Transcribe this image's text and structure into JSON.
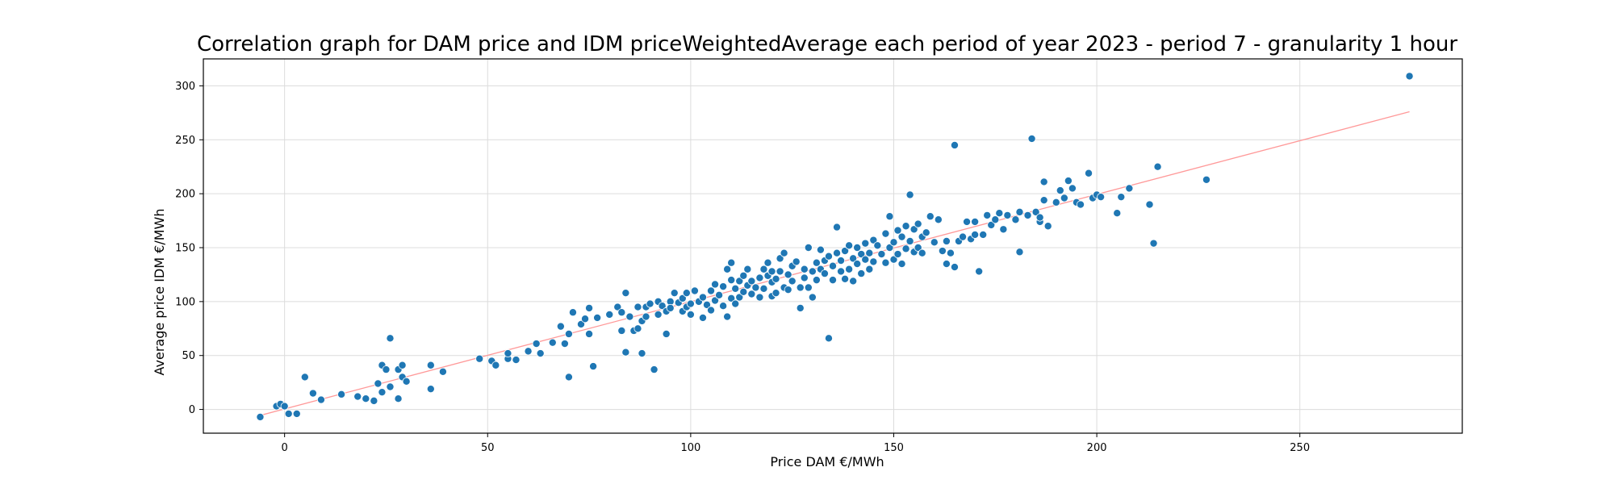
{
  "chart_data": {
    "type": "scatter",
    "title": "Correlation graph for DAM price and IDM priceWeightedAverage each period of year 2023 - period 7 - granularity 1 hour",
    "xlabel": "Price DAM €/MWh",
    "ylabel": "Average price IDM €/MWh",
    "xlim": [
      -20,
      290
    ],
    "ylim": [
      -22,
      325
    ],
    "xticks": [
      0,
      50,
      100,
      150,
      200,
      250
    ],
    "yticks": [
      0,
      50,
      100,
      150,
      200,
      250,
      300
    ],
    "grid": true,
    "colors": {
      "points": "#1f77b4",
      "regression": "#ff9999"
    },
    "regression_line": {
      "x": [
        -6,
        277
      ],
      "y": [
        -5.5,
        276
      ]
    },
    "series": [
      {
        "points": [
          [
            -6,
            -7
          ],
          [
            -2,
            3
          ],
          [
            -1,
            5
          ],
          [
            0,
            3
          ],
          [
            1,
            -4
          ],
          [
            3,
            -4
          ],
          [
            5,
            30
          ],
          [
            7,
            15
          ],
          [
            9,
            9
          ],
          [
            14,
            14
          ],
          [
            18,
            12
          ],
          [
            20,
            10
          ],
          [
            22,
            8
          ],
          [
            23,
            24
          ],
          [
            24,
            41
          ],
          [
            24,
            16
          ],
          [
            25,
            37
          ],
          [
            26,
            21
          ],
          [
            26,
            66
          ],
          [
            28,
            37
          ],
          [
            28,
            10
          ],
          [
            29,
            41
          ],
          [
            29,
            30
          ],
          [
            30,
            26
          ],
          [
            36,
            41
          ],
          [
            36,
            19
          ],
          [
            39,
            35
          ],
          [
            48,
            47
          ],
          [
            51,
            45
          ],
          [
            52,
            41
          ],
          [
            55,
            47
          ],
          [
            55,
            52
          ],
          [
            57,
            46
          ],
          [
            60,
            54
          ],
          [
            62,
            61
          ],
          [
            63,
            52
          ],
          [
            66,
            62
          ],
          [
            68,
            77
          ],
          [
            69,
            61
          ],
          [
            70,
            30
          ],
          [
            70,
            70
          ],
          [
            71,
            90
          ],
          [
            73,
            79
          ],
          [
            74,
            84
          ],
          [
            75,
            94
          ],
          [
            75,
            70
          ],
          [
            76,
            40
          ],
          [
            77,
            85
          ],
          [
            80,
            88
          ],
          [
            82,
            95
          ],
          [
            83,
            73
          ],
          [
            83,
            90
          ],
          [
            84,
            108
          ],
          [
            84,
            53
          ],
          [
            85,
            86
          ],
          [
            86,
            73
          ],
          [
            87,
            95
          ],
          [
            87,
            75
          ],
          [
            88,
            52
          ],
          [
            88,
            82
          ],
          [
            89,
            95
          ],
          [
            89,
            86
          ],
          [
            90,
            98
          ],
          [
            91,
            37
          ],
          [
            92,
            88
          ],
          [
            92,
            100
          ],
          [
            93,
            96
          ],
          [
            94,
            91
          ],
          [
            94,
            70
          ],
          [
            95,
            100
          ],
          [
            95,
            94
          ],
          [
            96,
            108
          ],
          [
            97,
            99
          ],
          [
            98,
            103
          ],
          [
            98,
            91
          ],
          [
            99,
            95
          ],
          [
            99,
            108
          ],
          [
            100,
            98
          ],
          [
            100,
            88
          ],
          [
            101,
            110
          ],
          [
            102,
            100
          ],
          [
            103,
            104
          ],
          [
            103,
            85
          ],
          [
            104,
            97
          ],
          [
            105,
            110
          ],
          [
            105,
            92
          ],
          [
            106,
            101
          ],
          [
            106,
            116
          ],
          [
            107,
            106
          ],
          [
            108,
            114
          ],
          [
            108,
            96
          ],
          [
            109,
            130
          ],
          [
            109,
            86
          ],
          [
            110,
            120
          ],
          [
            110,
            103
          ],
          [
            110,
            136
          ],
          [
            111,
            112
          ],
          [
            111,
            98
          ],
          [
            112,
            119
          ],
          [
            112,
            104
          ],
          [
            113,
            124
          ],
          [
            113,
            109
          ],
          [
            114,
            115
          ],
          [
            114,
            130
          ],
          [
            115,
            107
          ],
          [
            115,
            119
          ],
          [
            116,
            113
          ],
          [
            117,
            122
          ],
          [
            117,
            104
          ],
          [
            118,
            130
          ],
          [
            118,
            112
          ],
          [
            119,
            124
          ],
          [
            119,
            136
          ],
          [
            120,
            118
          ],
          [
            120,
            105
          ],
          [
            120,
            128
          ],
          [
            121,
            121
          ],
          [
            121,
            108
          ],
          [
            122,
            140
          ],
          [
            122,
            128
          ],
          [
            123,
            113
          ],
          [
            123,
            145
          ],
          [
            124,
            125
          ],
          [
            124,
            111
          ],
          [
            125,
            133
          ],
          [
            125,
            119
          ],
          [
            126,
            137
          ],
          [
            127,
            113
          ],
          [
            127,
            94
          ],
          [
            128,
            130
          ],
          [
            128,
            122
          ],
          [
            129,
            150
          ],
          [
            129,
            113
          ],
          [
            130,
            128
          ],
          [
            130,
            104
          ],
          [
            131,
            136
          ],
          [
            131,
            120
          ],
          [
            132,
            130
          ],
          [
            132,
            148
          ],
          [
            133,
            126
          ],
          [
            133,
            138
          ],
          [
            134,
            142
          ],
          [
            134,
            66
          ],
          [
            135,
            133
          ],
          [
            135,
            120
          ],
          [
            136,
            145
          ],
          [
            136,
            169
          ],
          [
            137,
            128
          ],
          [
            137,
            138
          ],
          [
            138,
            147
          ],
          [
            138,
            121
          ],
          [
            139,
            152
          ],
          [
            139,
            130
          ],
          [
            140,
            140
          ],
          [
            140,
            119
          ],
          [
            141,
            135
          ],
          [
            141,
            150
          ],
          [
            142,
            144
          ],
          [
            142,
            126
          ],
          [
            143,
            139
          ],
          [
            143,
            154
          ],
          [
            144,
            145
          ],
          [
            144,
            130
          ],
          [
            145,
            157
          ],
          [
            145,
            137
          ],
          [
            146,
            152
          ],
          [
            147,
            144
          ],
          [
            148,
            163
          ],
          [
            148,
            136
          ],
          [
            149,
            150
          ],
          [
            149,
            179
          ],
          [
            150,
            155
          ],
          [
            150,
            139
          ],
          [
            151,
            166
          ],
          [
            151,
            144
          ],
          [
            152,
            160
          ],
          [
            152,
            135
          ],
          [
            153,
            149
          ],
          [
            153,
            170
          ],
          [
            154,
            156
          ],
          [
            154,
            199
          ],
          [
            155,
            146
          ],
          [
            155,
            167
          ],
          [
            156,
            172
          ],
          [
            156,
            150
          ],
          [
            157,
            160
          ],
          [
            157,
            145
          ],
          [
            158,
            164
          ],
          [
            159,
            179
          ],
          [
            160,
            155
          ],
          [
            161,
            176
          ],
          [
            162,
            147
          ],
          [
            163,
            156
          ],
          [
            163,
            135
          ],
          [
            164,
            145
          ],
          [
            165,
            132
          ],
          [
            165,
            245
          ],
          [
            166,
            156
          ],
          [
            167,
            160
          ],
          [
            168,
            174
          ],
          [
            169,
            158
          ],
          [
            170,
            162
          ],
          [
            170,
            174
          ],
          [
            171,
            128
          ],
          [
            172,
            162
          ],
          [
            173,
            180
          ],
          [
            174,
            171
          ],
          [
            175,
            176
          ],
          [
            176,
            182
          ],
          [
            177,
            167
          ],
          [
            178,
            180
          ],
          [
            180,
            176
          ],
          [
            181,
            146
          ],
          [
            181,
            183
          ],
          [
            183,
            180
          ],
          [
            184,
            251
          ],
          [
            185,
            183
          ],
          [
            186,
            174
          ],
          [
            186,
            178
          ],
          [
            187,
            211
          ],
          [
            187,
            194
          ],
          [
            188,
            170
          ],
          [
            190,
            192
          ],
          [
            191,
            203
          ],
          [
            192,
            196
          ],
          [
            193,
            212
          ],
          [
            194,
            205
          ],
          [
            195,
            192
          ],
          [
            196,
            190
          ],
          [
            198,
            219
          ],
          [
            199,
            196
          ],
          [
            200,
            199
          ],
          [
            201,
            197
          ],
          [
            205,
            182
          ],
          [
            206,
            197
          ],
          [
            208,
            205
          ],
          [
            213,
            190
          ],
          [
            214,
            154
          ],
          [
            215,
            225
          ],
          [
            227,
            213
          ],
          [
            277,
            309
          ]
        ]
      }
    ]
  }
}
